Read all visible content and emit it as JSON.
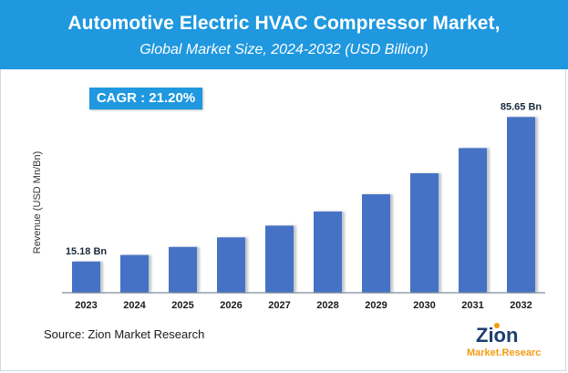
{
  "header": {
    "title": "Automotive Electric HVAC Compressor Market,",
    "subtitle": "Global Market Size, 2024-2032 (USD Billion)"
  },
  "cagr_label": "CAGR :  21.20%",
  "source": "Source: Zion Market Research",
  "logo": {
    "word_top": "Zion",
    "word_bottom": "Market.Research"
  },
  "colors": {
    "header": "#1f98df",
    "bar": "#4472c4",
    "bar_shadow": "#9aa3ad",
    "axis": "#7f8c99"
  },
  "chart_data": {
    "type": "bar",
    "title": "Automotive Electric HVAC Compressor Market, Global Market Size, 2024-2032 (USD Billion)",
    "xlabel": "",
    "ylabel": "Revenue (USD Mn/Bn)",
    "categories": [
      "2023",
      "2024",
      "2025",
      "2026",
      "2027",
      "2028",
      "2029",
      "2030",
      "2031",
      "2032"
    ],
    "values": [
      15.18,
      18.4,
      22.3,
      27.0,
      32.7,
      39.6,
      48.0,
      58.2,
      70.5,
      85.65
    ],
    "data_labels": [
      {
        "index": 0,
        "text": "15.18 Bn"
      },
      {
        "index": 9,
        "text": "85.65 Bn"
      }
    ],
    "ylim": [
      0,
      100
    ],
    "grid": false
  }
}
